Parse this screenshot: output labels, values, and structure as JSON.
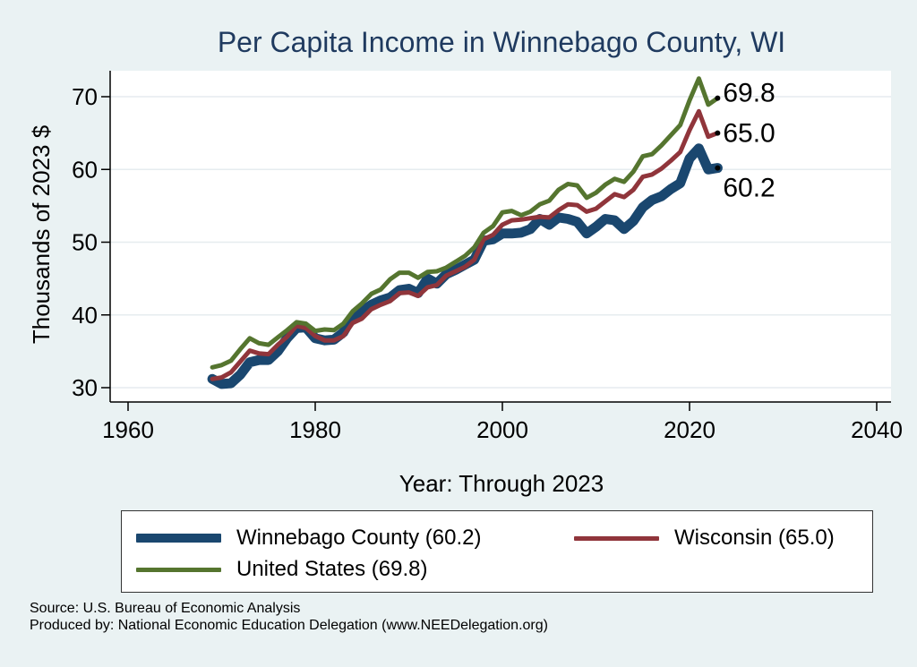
{
  "chart_data": {
    "type": "line",
    "title": "Per Capita Income in Winnebago County, WI",
    "xlabel": "Year: Through 2023",
    "ylabel": "Thousands of 2023 $",
    "xlim": [
      1960,
      2040
    ],
    "ylim": [
      28.5,
      74.5
    ],
    "xticks": [
      1960,
      1980,
      2000,
      2020,
      2040
    ],
    "yticks": [
      30,
      40,
      50,
      60,
      70
    ],
    "grid": true,
    "legend_position": "bottom",
    "x": [
      1969,
      1970,
      1971,
      1972,
      1973,
      1974,
      1975,
      1976,
      1977,
      1978,
      1979,
      1980,
      1981,
      1982,
      1983,
      1984,
      1985,
      1986,
      1987,
      1988,
      1989,
      1990,
      1991,
      1992,
      1993,
      1994,
      1995,
      1996,
      1997,
      1998,
      1999,
      2000,
      2001,
      2002,
      2003,
      2004,
      2005,
      2006,
      2007,
      2008,
      2009,
      2010,
      2011,
      2012,
      2013,
      2014,
      2015,
      2016,
      2017,
      2018,
      2019,
      2020,
      2021,
      2022,
      2023
    ],
    "series": [
      {
        "name": "Winnebago County (60.2)",
        "color": "#1a476f",
        "end_label": "60.2",
        "values": [
          31.2,
          30.5,
          30.6,
          31.8,
          33.5,
          33.8,
          33.8,
          35.0,
          36.8,
          38.2,
          38.3,
          36.8,
          36.5,
          36.6,
          37.6,
          39.8,
          40.5,
          41.4,
          42.0,
          42.4,
          43.4,
          43.6,
          43.0,
          45.0,
          44.3,
          45.6,
          46.2,
          46.9,
          47.6,
          50.2,
          50.4,
          51.2,
          51.2,
          51.3,
          51.8,
          53.2,
          52.4,
          53.4,
          53.2,
          52.8,
          51.2,
          52.1,
          53.2,
          53.0,
          51.8,
          52.9,
          54.8,
          55.8,
          56.3,
          57.3,
          58.1,
          61.5,
          62.9,
          60.0,
          60.2
        ]
      },
      {
        "name": "Wisconsin (65.0)",
        "color": "#90353b",
        "end_label": "65.0",
        "values": [
          31.2,
          31.4,
          32.1,
          33.6,
          35.1,
          34.7,
          34.6,
          35.9,
          37.0,
          38.5,
          38.2,
          37.1,
          36.5,
          36.5,
          37.1,
          38.9,
          39.5,
          40.8,
          41.4,
          41.9,
          43.0,
          43.1,
          42.6,
          43.8,
          44.1,
          45.4,
          46.0,
          46.6,
          47.6,
          50.4,
          51.0,
          52.4,
          53.0,
          53.1,
          53.3,
          53.5,
          53.4,
          54.4,
          55.2,
          55.1,
          54.2,
          54.6,
          55.6,
          56.6,
          56.2,
          57.2,
          59.0,
          59.3,
          60.1,
          61.2,
          62.4,
          65.4,
          68.0,
          64.5,
          65.0
        ]
      },
      {
        "name": "United States (69.8)",
        "color": "#55752f",
        "end_label": "69.8",
        "values": [
          32.8,
          33.1,
          33.7,
          35.3,
          36.8,
          36.1,
          35.9,
          36.9,
          37.9,
          39.0,
          38.8,
          37.8,
          38.0,
          37.9,
          38.8,
          40.5,
          41.6,
          42.9,
          43.5,
          44.9,
          45.8,
          45.8,
          45.1,
          45.9,
          46.0,
          46.5,
          47.3,
          48.1,
          49.3,
          51.3,
          52.2,
          54.1,
          54.3,
          53.7,
          54.2,
          55.2,
          55.7,
          57.2,
          58.0,
          57.8,
          56.1,
          56.8,
          57.9,
          58.7,
          58.3,
          59.7,
          61.8,
          62.1,
          63.3,
          64.7,
          66.1,
          69.5,
          72.5,
          68.9,
          69.8
        ]
      }
    ]
  },
  "footer": {
    "source": "Source: U.S. Bureau of Economic Analysis",
    "producer": "Produced by: National Economic Education Delegation (www.NEEDelegation.org)"
  }
}
